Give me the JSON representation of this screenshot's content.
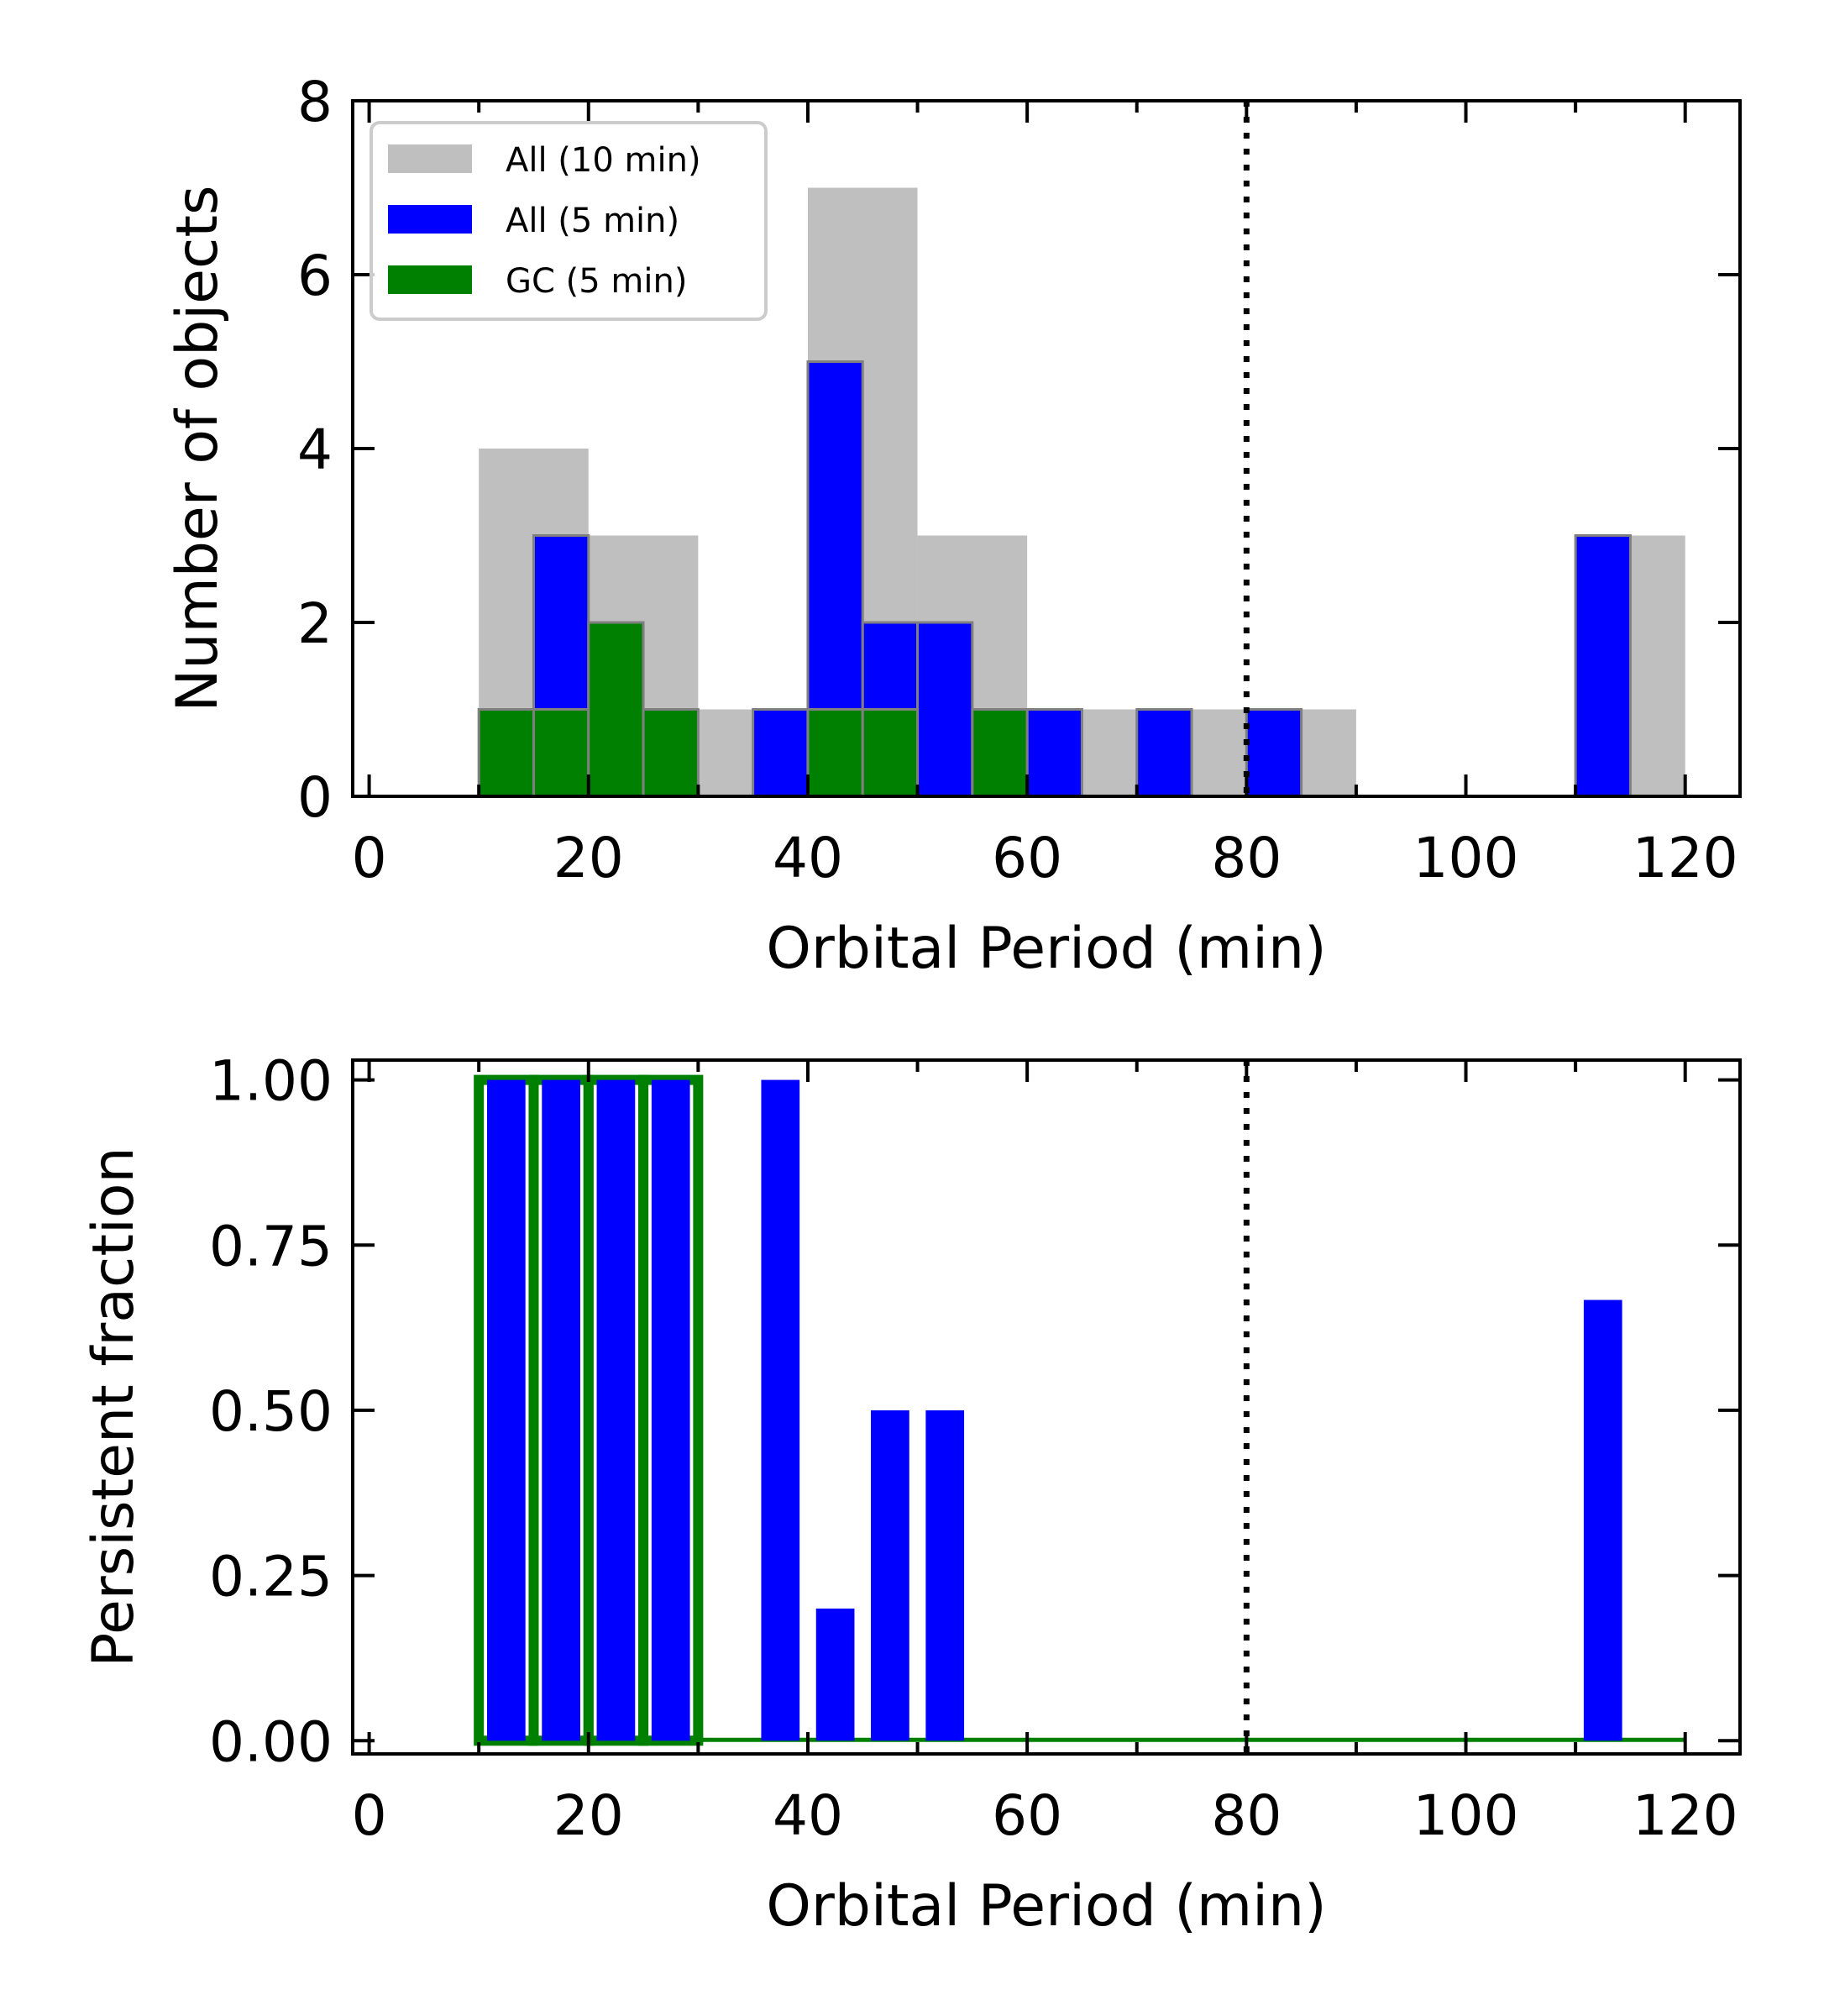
{
  "chart_data": [
    {
      "type": "bar",
      "panel": "top",
      "xlabel": "Orbital Period (min)",
      "ylabel": "Number of objects",
      "xlim": [
        -1.5,
        125
      ],
      "ylim": [
        0,
        8
      ],
      "xticks": [
        0,
        20,
        40,
        60,
        80,
        100,
        120
      ],
      "xtick_labels": [
        "0",
        "20",
        "40",
        "60",
        "80",
        "100",
        "120"
      ],
      "yticks": [
        0,
        2,
        4,
        6,
        8
      ],
      "ytick_labels": [
        "0",
        "2",
        "4",
        "6",
        "8"
      ],
      "reference_line_x": 80,
      "legend_position": "top-left",
      "series": [
        {
          "name": "All (10 min)",
          "color": "#bfbfbf",
          "bin_width": 10,
          "bin_starts": [
            10,
            20,
            30,
            40,
            50,
            60,
            70,
            80,
            90,
            100,
            110
          ],
          "values": [
            4,
            3,
            1,
            7,
            3,
            1,
            1,
            1,
            0,
            0,
            3
          ]
        },
        {
          "name": "All (5 min)",
          "color": "#0000ff",
          "bin_width": 5,
          "bin_starts": [
            15,
            35,
            40,
            45,
            50,
            60,
            70,
            80,
            110
          ],
          "values": [
            3,
            1,
            5,
            2,
            2,
            1,
            1,
            1,
            3
          ]
        },
        {
          "name": "GC (5 min)",
          "color": "#008000",
          "bin_width": 5,
          "bin_starts": [
            10,
            15,
            20,
            25,
            40,
            45,
            55
          ],
          "values": [
            1,
            1,
            2,
            1,
            1,
            1,
            1
          ]
        }
      ]
    },
    {
      "type": "bar",
      "panel": "bottom",
      "xlabel": "Orbital Period (min)",
      "ylabel": "Persistent fraction",
      "xlim": [
        -1.5,
        125
      ],
      "ylim": [
        -0.02,
        1.03
      ],
      "xticks": [
        0,
        20,
        40,
        60,
        80,
        100,
        120
      ],
      "xtick_labels": [
        "0",
        "20",
        "40",
        "60",
        "80",
        "100",
        "120"
      ],
      "yticks": [
        0,
        0.25,
        0.5,
        0.75,
        1.0
      ],
      "ytick_labels": [
        "0.00",
        "0.25",
        "0.50",
        "0.75",
        "1.00"
      ],
      "reference_line_x": 80,
      "series": [
        {
          "name": "GC (5 min)",
          "color": "#008000",
          "bin_width": 5,
          "bin_starts": [
            10,
            15,
            20,
            25
          ],
          "values": [
            1.0,
            1.0,
            1.0,
            1.0
          ],
          "zero_baseline_range": [
            30,
            120
          ]
        },
        {
          "name": "All (5 min)",
          "color": "#0000ff",
          "bin_width": 5,
          "bin_starts": [
            10,
            15,
            20,
            25,
            35,
            40,
            45,
            50,
            110
          ],
          "values": [
            1.0,
            1.0,
            1.0,
            1.0,
            1.0,
            0.2,
            0.5,
            0.5,
            0.667
          ]
        }
      ]
    }
  ]
}
